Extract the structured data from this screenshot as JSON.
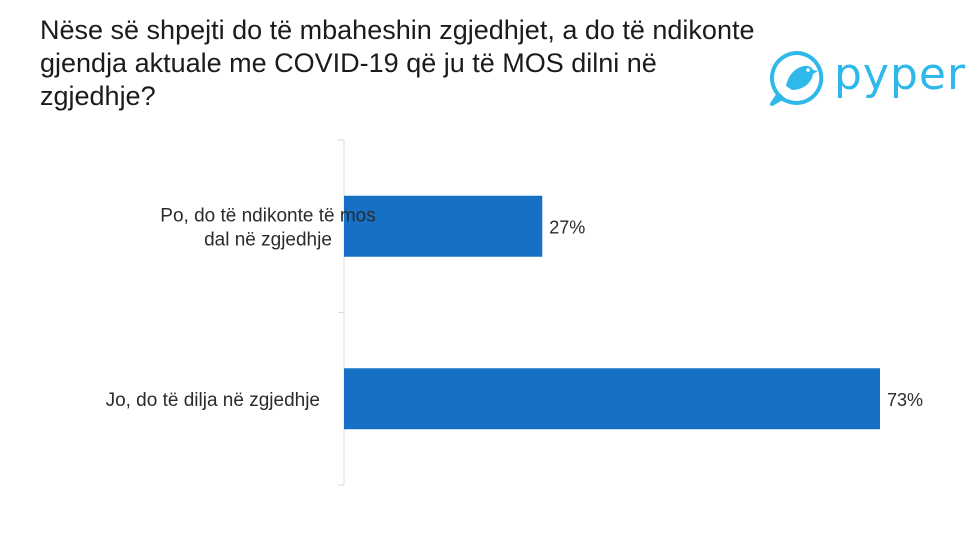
{
  "title": "Nëse së shpejti do të mbaheshin zgjedhjet, a do të ndikonte gjendja aktuale me COVID-19 që ju të MOS dilni në zgjedhje?",
  "brand": {
    "name": "pyper",
    "icon": "bird-logo-icon",
    "color": "#2fb9ea"
  },
  "chart_data": {
    "type": "bar",
    "orientation": "horizontal",
    "categories": [
      [
        "Po, do të ndikonte të mos",
        "dal në zgjedhje"
      ],
      [
        "Jo, do të dilja në zgjedhje"
      ]
    ],
    "values": [
      27,
      73
    ],
    "value_labels": [
      "27%",
      "73%"
    ],
    "xlim": [
      0,
      73
    ],
    "bar_color": "#1570c6",
    "grid": false
  }
}
